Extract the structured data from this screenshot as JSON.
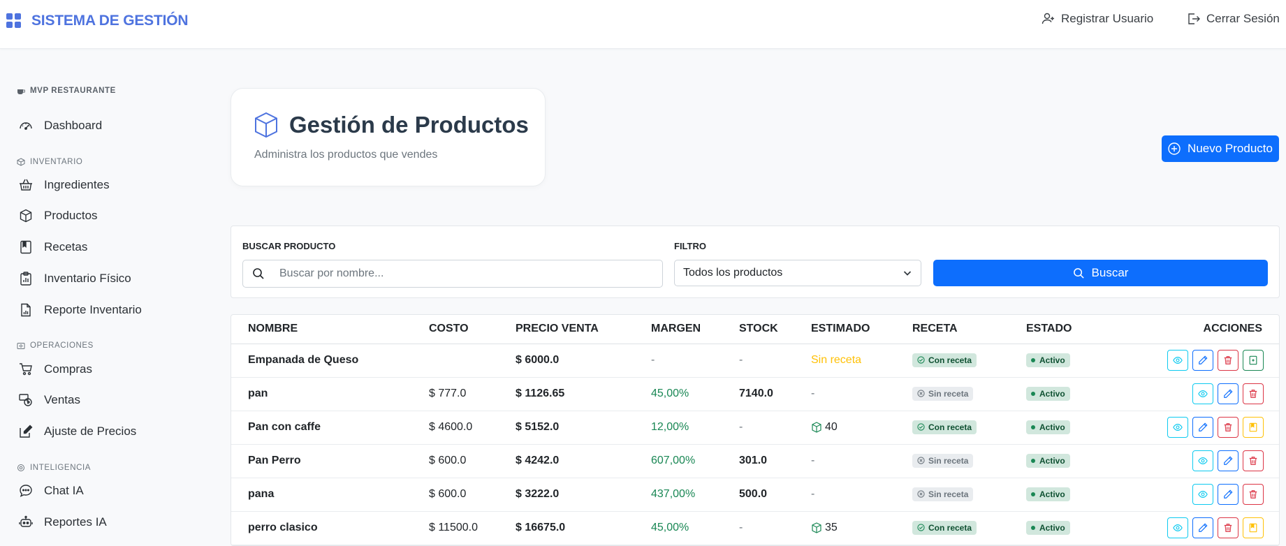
{
  "app": {
    "title": "SISTEMA DE GESTIÓN",
    "register_label": "Registrar Usuario",
    "logout_label": "Cerrar Sesión"
  },
  "sidebar": {
    "restaurant_label": "MVP RESTAURANTE",
    "dashboard_label": "Dashboard",
    "sections": {
      "inventario": "INVENTARIO",
      "operaciones": "OPERACIONES",
      "inteligencia": "INTELIGENCIA"
    },
    "items": {
      "ingredientes": "Ingredientes",
      "productos": "Productos",
      "recetas": "Recetas",
      "inventario_fisico": "Inventario Físico",
      "reporte_inventario": "Reporte Inventario",
      "compras": "Compras",
      "ventas": "Ventas",
      "ajuste_precios": "Ajuste de Precios",
      "chat_ia": "Chat IA",
      "reportes_ia": "Reportes IA"
    }
  },
  "header": {
    "title": "Gestión de Productos",
    "subtitle": "Administra los productos que vendes",
    "new_button": "Nuevo Producto"
  },
  "filters": {
    "search_label": "BUSCAR PRODUCTO",
    "search_placeholder": "Buscar por nombre...",
    "search_value": "",
    "filter_label": "FILTRO",
    "filter_selected": "Todos los productos",
    "search_button": "Buscar"
  },
  "table": {
    "columns": {
      "nombre": "NOMBRE",
      "costo": "COSTO",
      "precio": "PRECIO VENTA",
      "margen": "MARGEN",
      "stock": "STOCK",
      "estimado": "ESTIMADO",
      "receta": "RECETA",
      "estado": "ESTADO",
      "acciones": "ACCIONES"
    },
    "rows": [
      {
        "nombre": "Empanada de Queso",
        "costo": "",
        "precio": "$ 6000.0",
        "margen": "-",
        "stock": "-",
        "estimado": "Sin receta",
        "receta": "Con receta",
        "estado": "Activo"
      },
      {
        "nombre": "pan",
        "costo": "$ 777.0",
        "precio": "$ 1126.65",
        "margen": "45,00%",
        "stock": "7140.0",
        "estimado": "-",
        "receta": "Sin receta",
        "estado": "Activo"
      },
      {
        "nombre": "Pan con caffe",
        "costo": "$ 4600.0",
        "precio": "$ 5152.0",
        "margen": "12,00%",
        "stock": "-",
        "estimado": "40",
        "receta": "Con receta",
        "estado": "Activo"
      },
      {
        "nombre": "Pan Perro",
        "costo": "$ 600.0",
        "precio": "$ 4242.0",
        "margen": "607,00%",
        "stock": "301.0",
        "estimado": "-",
        "receta": "Sin receta",
        "estado": "Activo"
      },
      {
        "nombre": "pana",
        "costo": "$ 600.0",
        "precio": "$ 3222.0",
        "margen": "437,00%",
        "stock": "500.0",
        "estimado": "-",
        "receta": "Sin receta",
        "estado": "Activo"
      },
      {
        "nombre": "perro clasico",
        "costo": "$ 11500.0",
        "precio": "$ 16675.0",
        "margen": "45,00%",
        "stock": "-",
        "estimado": "35",
        "receta": "Con receta",
        "estado": "Activo"
      }
    ]
  },
  "colors": {
    "brand": "#4e73df",
    "primary": "#0d6efd",
    "success": "#198754",
    "warning": "#ffc107",
    "danger": "#dc3545",
    "info": "#0dcaf0"
  }
}
